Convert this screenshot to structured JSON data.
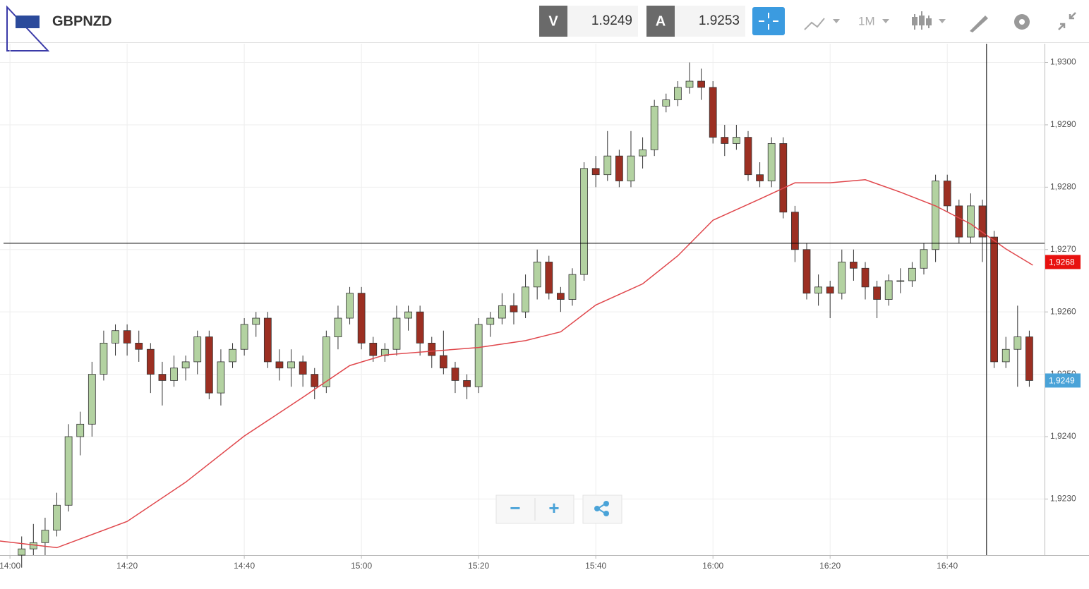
{
  "header": {
    "symbol": "GBPNZD",
    "sell_label": "V",
    "sell": 1.9249,
    "buy_label": "A",
    "buy": 1.9253,
    "timeframe": "1M"
  },
  "controls": {
    "zoom_out": "−",
    "zoom_in": "+"
  },
  "chart_data": {
    "type": "candlestick",
    "x": [
      2,
      4,
      6,
      8,
      10,
      12,
      14,
      16,
      18,
      20,
      22,
      24,
      26,
      28,
      30,
      32,
      34,
      36,
      38,
      40,
      42,
      44,
      46,
      48,
      50,
      52,
      54,
      56,
      58,
      60,
      62,
      64,
      66,
      68,
      70,
      72,
      74,
      76,
      78,
      80,
      82,
      84,
      86,
      88,
      90,
      92,
      94,
      96,
      98,
      100,
      102,
      104,
      106,
      108,
      110,
      112,
      114,
      116,
      118,
      120,
      122,
      124,
      126,
      128,
      130,
      132,
      134,
      136,
      138,
      140,
      142,
      144,
      146,
      148,
      150,
      152,
      154,
      156,
      158,
      160,
      162,
      164,
      166,
      168,
      170,
      172,
      174
    ],
    "open": [
      1.9221,
      1.9222,
      1.9223,
      1.9225,
      1.9229,
      1.924,
      1.9242,
      1.925,
      1.9255,
      1.9257,
      1.9255,
      1.9254,
      1.925,
      1.9249,
      1.9251,
      1.9252,
      1.9256,
      1.9247,
      1.9252,
      1.9254,
      1.9258,
      1.9259,
      1.9252,
      1.9251,
      1.9252,
      1.925,
      1.9248,
      1.9256,
      1.9259,
      1.9263,
      1.9255,
      1.9253,
      1.9254,
      1.9259,
      1.926,
      1.9255,
      1.9253,
      1.9251,
      1.9249,
      1.9248,
      1.9258,
      1.9259,
      1.9261,
      1.926,
      1.9264,
      1.9268,
      1.9263,
      1.9262,
      1.9266,
      1.9283,
      1.9282,
      1.9285,
      1.9281,
      1.9285,
      1.9286,
      1.9293,
      1.9294,
      1.9296,
      1.9297,
      1.9296,
      1.9288,
      1.9287,
      1.9288,
      1.9282,
      1.9281,
      1.9287,
      1.9276,
      1.927,
      1.9263,
      1.9264,
      1.9263,
      1.9268,
      1.9267,
      1.9264,
      1.9262,
      1.9265,
      1.9265,
      1.9267,
      1.927,
      1.9281,
      1.9277,
      1.9272,
      1.9277,
      1.9272,
      1.9252,
      1.9254,
      1.9256
    ],
    "high": [
      1.9224,
      1.9226,
      1.9227,
      1.9231,
      1.9242,
      1.9244,
      1.9252,
      1.9257,
      1.9258,
      1.9258,
      1.9257,
      1.9255,
      1.9252,
      1.9253,
      1.9253,
      1.9257,
      1.9257,
      1.9254,
      1.9255,
      1.9259,
      1.926,
      1.926,
      1.9254,
      1.9254,
      1.9253,
      1.9251,
      1.9257,
      1.9261,
      1.9264,
      1.9264,
      1.9256,
      1.9255,
      1.9261,
      1.9261,
      1.9261,
      1.9256,
      1.9257,
      1.9252,
      1.925,
      1.9259,
      1.926,
      1.9263,
      1.9263,
      1.9266,
      1.927,
      1.9269,
      1.9264,
      1.9267,
      1.9284,
      1.9285,
      1.9289,
      1.9286,
      1.9289,
      1.9288,
      1.9294,
      1.9295,
      1.9297,
      1.93,
      1.9299,
      1.9297,
      1.929,
      1.929,
      1.9289,
      1.9284,
      1.9288,
      1.9288,
      1.9277,
      1.9271,
      1.9266,
      1.9265,
      1.927,
      1.927,
      1.9268,
      1.9265,
      1.9266,
      1.9267,
      1.9268,
      1.9271,
      1.9282,
      1.9282,
      1.9278,
      1.9279,
      1.9278,
      1.9273,
      1.9256,
      1.9261,
      1.9257
    ],
    "low": [
      1.9219,
      1.9221,
      1.9221,
      1.9224,
      1.9228,
      1.9237,
      1.924,
      1.9249,
      1.9253,
      1.9253,
      1.9252,
      1.9247,
      1.9245,
      1.9248,
      1.9249,
      1.925,
      1.9246,
      1.9245,
      1.9251,
      1.9253,
      1.9256,
      1.9251,
      1.9249,
      1.9248,
      1.9248,
      1.9246,
      1.9247,
      1.9254,
      1.9258,
      1.9254,
      1.9252,
      1.9252,
      1.9253,
      1.9257,
      1.9253,
      1.9251,
      1.925,
      1.9247,
      1.9246,
      1.9247,
      1.9256,
      1.9258,
      1.9258,
      1.9259,
      1.9262,
      1.9262,
      1.926,
      1.9261,
      1.9265,
      1.928,
      1.9281,
      1.928,
      1.928,
      1.9283,
      1.9285,
      1.9292,
      1.9293,
      1.9295,
      1.9294,
      1.9287,
      1.9285,
      1.9286,
      1.9281,
      1.928,
      1.928,
      1.9275,
      1.9268,
      1.9262,
      1.9261,
      1.9259,
      1.9262,
      1.9265,
      1.9262,
      1.9259,
      1.9261,
      1.9263,
      1.9264,
      1.9266,
      1.9268,
      1.9276,
      1.9271,
      1.9271,
      1.9268,
      1.9251,
      1.9251,
      1.9248,
      1.9248
    ],
    "close": [
      1.9222,
      1.9223,
      1.9225,
      1.9229,
      1.924,
      1.9242,
      1.925,
      1.9255,
      1.9257,
      1.9255,
      1.9254,
      1.925,
      1.9249,
      1.9251,
      1.9252,
      1.9256,
      1.9247,
      1.9252,
      1.9254,
      1.9258,
      1.9259,
      1.9252,
      1.9251,
      1.9252,
      1.925,
      1.9248,
      1.9256,
      1.9259,
      1.9263,
      1.9255,
      1.9253,
      1.9254,
      1.9259,
      1.926,
      1.9255,
      1.9253,
      1.9251,
      1.9249,
      1.9248,
      1.9258,
      1.9259,
      1.9261,
      1.926,
      1.9264,
      1.9268,
      1.9263,
      1.9262,
      1.9266,
      1.9283,
      1.9282,
      1.9285,
      1.9281,
      1.9285,
      1.9286,
      1.9293,
      1.9294,
      1.9296,
      1.9297,
      1.9296,
      1.9288,
      1.9287,
      1.9288,
      1.9282,
      1.9281,
      1.9287,
      1.9276,
      1.927,
      1.9263,
      1.9264,
      1.9263,
      1.9268,
      1.9267,
      1.9264,
      1.9262,
      1.9265,
      1.9265,
      1.9267,
      1.927,
      1.9281,
      1.9277,
      1.9272,
      1.9277,
      1.9272,
      1.9252,
      1.9254,
      1.9256,
      1.9249
    ],
    "up_color": "#b3d2a1",
    "down_color": "#9c2f22",
    "moving_average": {
      "color": "#e0474c",
      "x": [
        -2,
        8,
        20,
        30,
        40,
        50,
        58,
        64,
        72,
        80,
        88,
        94,
        100,
        108,
        114,
        120,
        128,
        134,
        140,
        146,
        152,
        158,
        164,
        170,
        174.6
      ],
      "values": [
        1.92233,
        1.92222,
        1.92264,
        1.92327,
        1.92401,
        1.92463,
        1.92514,
        1.92531,
        1.92537,
        1.92543,
        1.92554,
        1.92568,
        1.92611,
        1.92645,
        1.9269,
        1.92747,
        1.92781,
        1.92807,
        1.92807,
        1.92812,
        1.92792,
        1.9277,
        1.92741,
        1.92701,
        1.92675
      ]
    },
    "crosshair": {
      "x": 166.7,
      "y": 1.9271
    },
    "price_labels": [
      {
        "value": 1.9268,
        "label": "1,9268",
        "color": "#e8110f"
      },
      {
        "value": 1.9249,
        "label": "1,9249",
        "color": "#4aa3d8"
      }
    ],
    "xlim": [
      -1.7,
      176.6
    ],
    "ylim": [
      1.9221,
      1.9303
    ],
    "xticks": [
      {
        "value": 0,
        "label": "14:00"
      },
      {
        "value": 20,
        "label": "14:20"
      },
      {
        "value": 40,
        "label": "14:40"
      },
      {
        "value": 60,
        "label": "15:00"
      },
      {
        "value": 80,
        "label": "15:20"
      },
      {
        "value": 100,
        "label": "15:40"
      },
      {
        "value": 120,
        "label": "16:00"
      },
      {
        "value": 140,
        "label": "16:20"
      },
      {
        "value": 160,
        "label": "16:40"
      }
    ],
    "yticks": [
      {
        "value": 1.923,
        "label": "1,9230"
      },
      {
        "value": 1.924,
        "label": "1,9240"
      },
      {
        "value": 1.925,
        "label": "1,9250"
      },
      {
        "value": 1.926,
        "label": "1,9260"
      },
      {
        "value": 1.927,
        "label": "1,9270"
      },
      {
        "value": 1.928,
        "label": "1,9280"
      },
      {
        "value": 1.929,
        "label": "1,9290"
      },
      {
        "value": 1.93,
        "label": "1,9300"
      }
    ],
    "grid": true
  }
}
